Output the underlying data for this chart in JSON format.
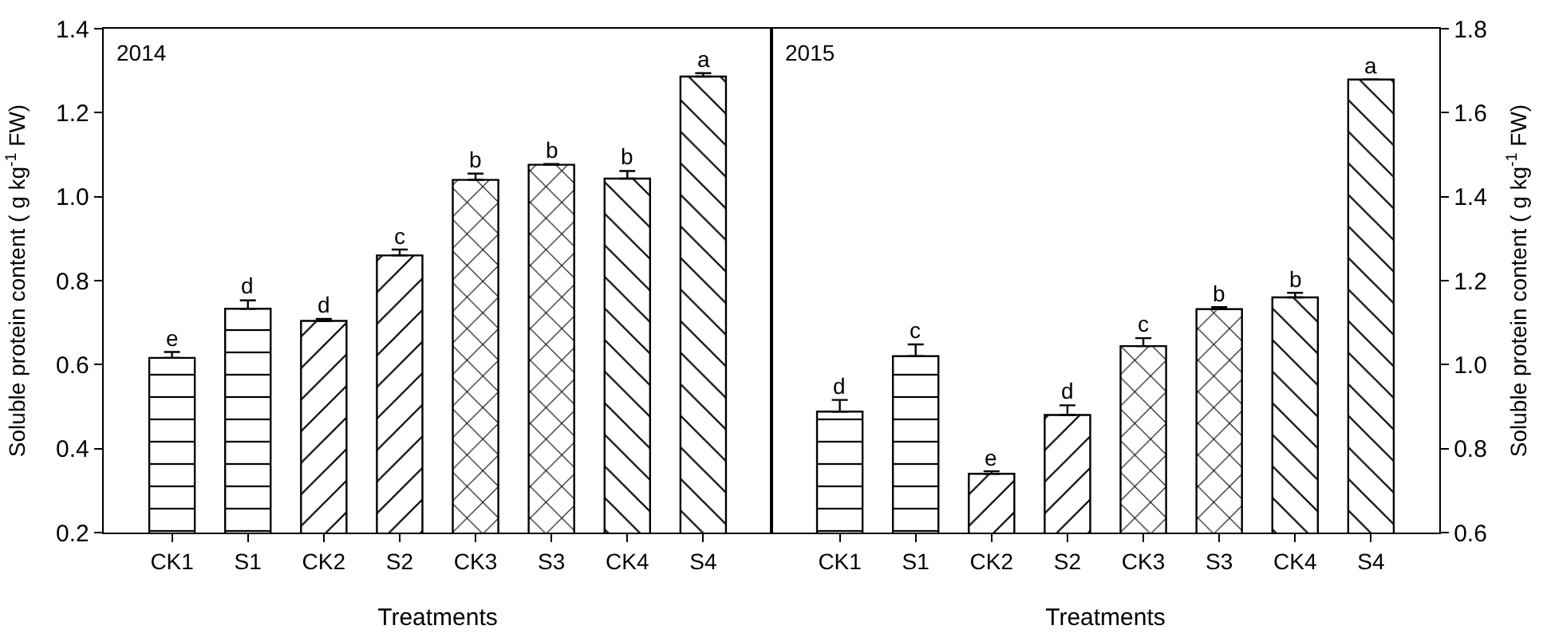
{
  "chart_data": [
    {
      "type": "bar",
      "title": "2014",
      "xlabel": "Treatments",
      "ylabel": "Soluble protein content ( g kg$^{-1}$ FW)",
      "categories": [
        "CK1",
        "S1",
        "CK2",
        "S2",
        "CK3",
        "S3",
        "CK4",
        "S4"
      ],
      "values": [
        0.616,
        0.733,
        0.704,
        0.86,
        1.04,
        1.076,
        1.043,
        1.286
      ],
      "errors": [
        0.014,
        0.02,
        0.005,
        0.014,
        0.015,
        0.002,
        0.018,
        0.008
      ],
      "value_labels": [
        "e",
        "d",
        "d",
        "c",
        "b",
        "b",
        "b",
        "a"
      ],
      "ylim": [
        0.2,
        1.4
      ],
      "yticks": [
        0.2,
        0.4,
        0.6,
        0.8,
        {
          "value": 1.0,
          "label": "1.0"
        },
        1.2,
        1.4
      ],
      "grid": false
    },
    {
      "type": "bar",
      "title": "2015",
      "xlabel": "Treatments",
      "ylabel": "Soluble protein content ( g kg$^{-1}$ FW)",
      "categories": [
        "CK1",
        "S1",
        "CK2",
        "S2",
        "CK3",
        "S3",
        "CK4",
        "S4"
      ],
      "values": [
        0.888,
        1.02,
        0.74,
        0.88,
        1.044,
        1.132,
        1.16,
        1.679
      ],
      "errors": [
        0.028,
        0.028,
        0.006,
        0.023,
        0.019,
        0.005,
        0.011,
        null
      ],
      "value_labels": [
        "d",
        "c",
        "e",
        "d",
        "c",
        "b",
        "b",
        "a"
      ],
      "ylim": [
        0.6,
        1.8
      ],
      "yticks": [
        0.6,
        0.8,
        {
          "value": 1.0,
          "label": "1.0"
        },
        1.2,
        1.4,
        1.6,
        1.8
      ],
      "grid": false
    }
  ]
}
